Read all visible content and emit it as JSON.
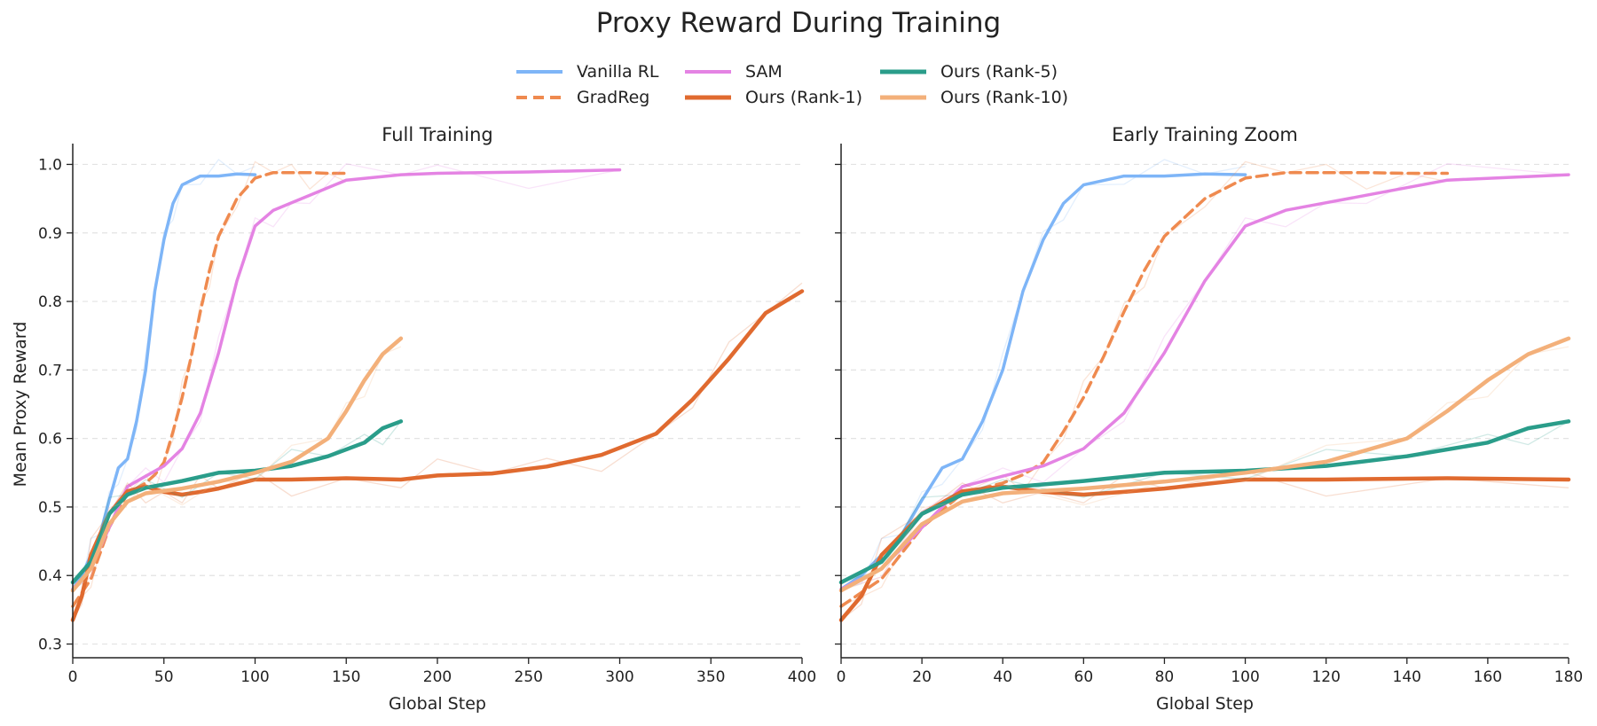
{
  "figure": {
    "title": "Proxy Reward During Training"
  },
  "colors": {
    "vanilla": "#7eb5f7",
    "gradreg": "#ef8a4f",
    "sam": "#e483e3",
    "rank1": "#e06a2f",
    "rank5": "#2a9d8a",
    "rank10": "#f3b07a"
  },
  "legend": [
    {
      "name": "Vanilla RL",
      "color": "#7eb5f7",
      "style": "solid",
      "width": 4
    },
    {
      "name": "GradReg",
      "color": "#ef8a4f",
      "style": "dashed",
      "width": 4
    },
    {
      "name": "SAM",
      "color": "#e483e3",
      "style": "solid",
      "width": 4
    },
    {
      "name": "Ours (Rank-1)",
      "color": "#e06a2f",
      "style": "solid",
      "width": 5
    },
    {
      "name": "Ours (Rank-5)",
      "color": "#2a9d8a",
      "style": "solid",
      "width": 5
    },
    {
      "name": "Ours (Rank-10)",
      "color": "#f3b07a",
      "style": "solid",
      "width": 5
    }
  ],
  "chart_data": [
    {
      "type": "line",
      "title": "Full Training",
      "xlabel": "Global Step",
      "ylabel": "Mean Proxy Reward",
      "xlim": [
        0,
        400
      ],
      "ylim": [
        0.28,
        1.02
      ],
      "xticks": [
        0,
        50,
        100,
        150,
        200,
        250,
        300,
        350,
        400
      ],
      "yticks": [
        0.3,
        0.4,
        0.5,
        0.6,
        0.7,
        0.8,
        0.9,
        1.0
      ],
      "grid": "horizontal dashed",
      "series": [
        {
          "name": "Vanilla RL",
          "x": [
            0,
            5,
            10,
            15,
            20,
            25,
            30,
            35,
            40,
            45,
            50,
            55,
            60,
            70,
            80,
            90,
            100
          ],
          "y": [
            0.38,
            0.4,
            0.43,
            0.46,
            0.51,
            0.557,
            0.57,
            0.625,
            0.7,
            0.815,
            0.89,
            0.943,
            0.97,
            0.983,
            0.983,
            0.986,
            0.985
          ]
        },
        {
          "name": "GradReg",
          "x": [
            0,
            10,
            20,
            30,
            40,
            45,
            50,
            55,
            60,
            65,
            70,
            75,
            80,
            90,
            100,
            110,
            120,
            130,
            140,
            150
          ],
          "y": [
            0.355,
            0.395,
            0.47,
            0.52,
            0.535,
            0.547,
            0.565,
            0.61,
            0.66,
            0.72,
            0.785,
            0.845,
            0.895,
            0.95,
            0.98,
            0.988,
            0.988,
            0.988,
            0.987,
            0.987
          ]
        },
        {
          "name": "SAM",
          "x": [
            0,
            10,
            20,
            30,
            40,
            50,
            60,
            70,
            80,
            90,
            100,
            110,
            120,
            130,
            150,
            180,
            200,
            250,
            300
          ],
          "y": [
            0.38,
            0.41,
            0.47,
            0.53,
            0.545,
            0.56,
            0.585,
            0.637,
            0.725,
            0.83,
            0.91,
            0.933,
            0.944,
            0.955,
            0.977,
            0.985,
            0.987,
            0.989,
            0.992
          ]
        },
        {
          "name": "Ours (Rank-1)",
          "x": [
            0,
            5,
            10,
            20,
            30,
            40,
            50,
            60,
            70,
            80,
            100,
            120,
            150,
            180,
            200,
            230,
            260,
            290,
            320,
            340,
            360,
            380,
            400
          ],
          "y": [
            0.335,
            0.37,
            0.43,
            0.49,
            0.523,
            0.53,
            0.522,
            0.518,
            0.522,
            0.527,
            0.54,
            0.54,
            0.542,
            0.54,
            0.546,
            0.549,
            0.559,
            0.576,
            0.607,
            0.657,
            0.717,
            0.783,
            0.815
          ]
        },
        {
          "name": "Ours (Rank-5)",
          "x": [
            0,
            10,
            20,
            30,
            40,
            60,
            80,
            100,
            120,
            140,
            160,
            170,
            180
          ],
          "y": [
            0.39,
            0.42,
            0.49,
            0.518,
            0.528,
            0.538,
            0.55,
            0.553,
            0.56,
            0.574,
            0.594,
            0.615,
            0.625
          ]
        },
        {
          "name": "Ours (Rank-10)",
          "x": [
            0,
            10,
            20,
            30,
            40,
            60,
            80,
            100,
            120,
            140,
            150,
            160,
            170,
            180
          ],
          "y": [
            0.378,
            0.41,
            0.475,
            0.508,
            0.52,
            0.527,
            0.537,
            0.55,
            0.566,
            0.6,
            0.64,
            0.685,
            0.723,
            0.746
          ]
        }
      ]
    },
    {
      "type": "line",
      "title": "Early Training Zoom",
      "xlabel": "Global Step",
      "ylabel": "",
      "xlim": [
        0,
        180
      ],
      "ylim": [
        0.28,
        1.02
      ],
      "xticks": [
        0,
        20,
        40,
        60,
        80,
        100,
        120,
        140,
        160,
        180
      ],
      "yticks": [
        0.3,
        0.4,
        0.5,
        0.6,
        0.7,
        0.8,
        0.9,
        1.0
      ],
      "grid": "horizontal dashed",
      "series": [
        {
          "name": "Vanilla RL",
          "x": [
            0,
            5,
            10,
            15,
            20,
            25,
            30,
            35,
            40,
            45,
            50,
            55,
            60,
            70,
            80,
            90,
            100
          ],
          "y": [
            0.38,
            0.4,
            0.43,
            0.46,
            0.51,
            0.557,
            0.57,
            0.625,
            0.7,
            0.815,
            0.89,
            0.943,
            0.97,
            0.983,
            0.983,
            0.986,
            0.985
          ]
        },
        {
          "name": "GradReg",
          "x": [
            0,
            10,
            20,
            30,
            40,
            45,
            50,
            55,
            60,
            65,
            70,
            75,
            80,
            90,
            100,
            110,
            120,
            130,
            140,
            150
          ],
          "y": [
            0.355,
            0.395,
            0.47,
            0.52,
            0.535,
            0.547,
            0.565,
            0.61,
            0.66,
            0.72,
            0.785,
            0.845,
            0.895,
            0.95,
            0.98,
            0.988,
            0.988,
            0.988,
            0.987,
            0.987
          ]
        },
        {
          "name": "SAM",
          "x": [
            0,
            10,
            20,
            30,
            40,
            50,
            60,
            70,
            80,
            90,
            100,
            110,
            120,
            130,
            150,
            180
          ],
          "y": [
            0.38,
            0.41,
            0.47,
            0.53,
            0.545,
            0.56,
            0.585,
            0.637,
            0.725,
            0.83,
            0.91,
            0.933,
            0.944,
            0.955,
            0.977,
            0.985
          ]
        },
        {
          "name": "Ours (Rank-1)",
          "x": [
            0,
            5,
            10,
            20,
            30,
            40,
            50,
            60,
            70,
            80,
            100,
            120,
            150,
            180
          ],
          "y": [
            0.335,
            0.37,
            0.43,
            0.49,
            0.523,
            0.53,
            0.522,
            0.518,
            0.522,
            0.527,
            0.54,
            0.54,
            0.542,
            0.54
          ]
        },
        {
          "name": "Ours (Rank-5)",
          "x": [
            0,
            10,
            20,
            30,
            40,
            60,
            80,
            100,
            120,
            140,
            160,
            170,
            180
          ],
          "y": [
            0.39,
            0.42,
            0.49,
            0.518,
            0.528,
            0.538,
            0.55,
            0.553,
            0.56,
            0.574,
            0.594,
            0.615,
            0.625
          ]
        },
        {
          "name": "Ours (Rank-10)",
          "x": [
            0,
            10,
            20,
            30,
            40,
            60,
            80,
            100,
            120,
            140,
            150,
            160,
            170,
            180
          ],
          "y": [
            0.378,
            0.41,
            0.475,
            0.508,
            0.52,
            0.527,
            0.537,
            0.55,
            0.566,
            0.6,
            0.64,
            0.685,
            0.723,
            0.746
          ]
        }
      ]
    }
  ]
}
